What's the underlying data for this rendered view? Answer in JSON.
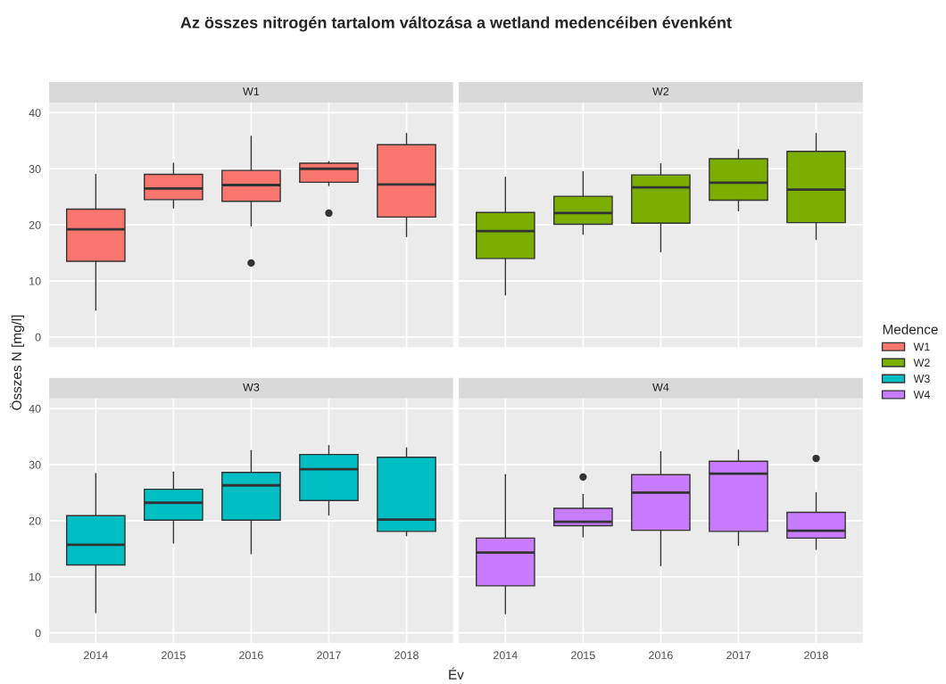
{
  "chart_data": [
    {
      "type": "box",
      "title": "Az összes nitrogén tartalom változása a wetland medencéiben évenként",
      "subtitle": "W1",
      "ylabel": "Összes N [mg/l]",
      "legend_title": "Medence",
      "legend": "right",
      "grid": true,
      "tick_labels": "y",
      "categories": [
        "2014",
        "2015",
        "2016",
        "2017",
        "2018"
      ],
      "ylim": [
        -1.8,
        41.8
      ],
      "yticks": [
        0,
        10,
        20,
        30,
        40
      ],
      "series": [
        {
          "name": "W1",
          "color": "#f8766d",
          "boxes": [
            {
              "low": 4.8,
              "q1": 13.5,
              "median": 19.2,
              "q3": 22.8,
              "high": 29.0
            },
            {
              "low": 23.0,
              "q1": 24.5,
              "median": 26.5,
              "q3": 29.0,
              "high": 31.0
            },
            {
              "low": 19.8,
              "q1": 24.2,
              "median": 27.1,
              "q3": 29.7,
              "high": 35.8,
              "outliers": [
                13.2
              ]
            },
            {
              "low": 27.0,
              "q1": 27.6,
              "median": 30.0,
              "q3": 31.0,
              "high": 31.3,
              "outliers": [
                22.1
              ]
            },
            {
              "low": 17.9,
              "q1": 21.4,
              "median": 27.2,
              "q3": 34.3,
              "high": 36.3
            }
          ]
        }
      ]
    },
    {
      "type": "box",
      "subtitle": "W2",
      "grid": true,
      "tick_labels": false,
      "categories": [
        "2014",
        "2015",
        "2016",
        "2017",
        "2018"
      ],
      "ylim": [
        -1.8,
        41.8
      ],
      "yticks": [
        0,
        10,
        20,
        30,
        40
      ],
      "series": [
        {
          "name": "W2",
          "color": "#7cae00",
          "boxes": [
            {
              "low": 7.5,
              "q1": 14.0,
              "median": 18.9,
              "q3": 22.2,
              "high": 28.5
            },
            {
              "low": 18.3,
              "q1": 20.1,
              "median": 22.1,
              "q3": 25.1,
              "high": 29.5
            },
            {
              "low": 15.2,
              "q1": 20.3,
              "median": 26.7,
              "q3": 28.9,
              "high": 30.9
            },
            {
              "low": 22.5,
              "q1": 24.4,
              "median": 27.5,
              "q3": 31.8,
              "high": 33.4
            },
            {
              "low": 17.4,
              "q1": 20.4,
              "median": 26.3,
              "q3": 33.1,
              "high": 36.3
            }
          ]
        }
      ]
    },
    {
      "type": "box",
      "subtitle": "W3",
      "xlabel": "Év",
      "grid": true,
      "categories": [
        "2014",
        "2015",
        "2016",
        "2017",
        "2018"
      ],
      "ylim": [
        -1.8,
        41.8
      ],
      "yticks": [
        0,
        10,
        20,
        30,
        40
      ],
      "series": [
        {
          "name": "W3",
          "color": "#00bfc4",
          "boxes": [
            {
              "low": 3.6,
              "q1": 12.1,
              "median": 15.7,
              "q3": 20.9,
              "high": 28.4
            },
            {
              "low": 16.0,
              "q1": 20.1,
              "median": 23.2,
              "q3": 25.6,
              "high": 28.7
            },
            {
              "low": 14.1,
              "q1": 20.1,
              "median": 26.3,
              "q3": 28.6,
              "high": 32.5
            },
            {
              "low": 21.0,
              "q1": 23.6,
              "median": 29.2,
              "q3": 31.8,
              "high": 33.4
            },
            {
              "low": 17.3,
              "q1": 18.1,
              "median": 20.2,
              "q3": 31.3,
              "high": 33.0
            }
          ]
        }
      ]
    },
    {
      "type": "box",
      "subtitle": "W4",
      "grid": true,
      "tick_labels": "x",
      "categories": [
        "2014",
        "2015",
        "2016",
        "2017",
        "2018"
      ],
      "ylim": [
        -1.8,
        41.8
      ],
      "yticks": [
        0,
        10,
        20,
        30,
        40
      ],
      "series": [
        {
          "name": "W4",
          "color": "#c77cff",
          "boxes": [
            {
              "low": 3.4,
              "q1": 8.4,
              "median": 14.3,
              "q3": 16.9,
              "high": 28.2
            },
            {
              "low": 17.1,
              "q1": 19.1,
              "median": 19.8,
              "q3": 22.2,
              "high": 24.7,
              "outliers": [
                27.8
              ]
            },
            {
              "low": 12.0,
              "q1": 18.3,
              "median": 25.0,
              "q3": 28.2,
              "high": 32.3
            },
            {
              "low": 15.6,
              "q1": 18.1,
              "median": 28.4,
              "q3": 30.6,
              "high": 32.6
            },
            {
              "low": 14.9,
              "q1": 16.9,
              "median": 18.2,
              "q3": 21.5,
              "high": 25.0,
              "outliers": [
                31.1
              ]
            }
          ]
        }
      ]
    }
  ]
}
